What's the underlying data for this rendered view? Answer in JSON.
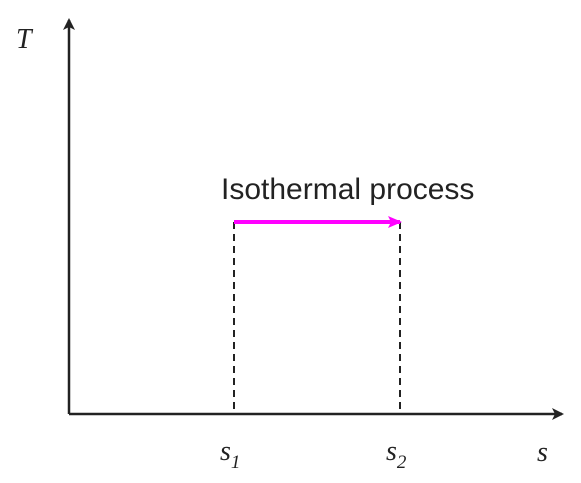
{
  "axes": {
    "y_label": "T",
    "x_label": "s"
  },
  "ticks": [
    {
      "symbol": "s",
      "subscript": "1"
    },
    {
      "symbol": "s",
      "subscript": "2"
    }
  ],
  "process": {
    "label": "Isothermal process",
    "arrow_color": "#ff00ff"
  },
  "colors": {
    "axis": "#222222",
    "guide": "#222222"
  }
}
